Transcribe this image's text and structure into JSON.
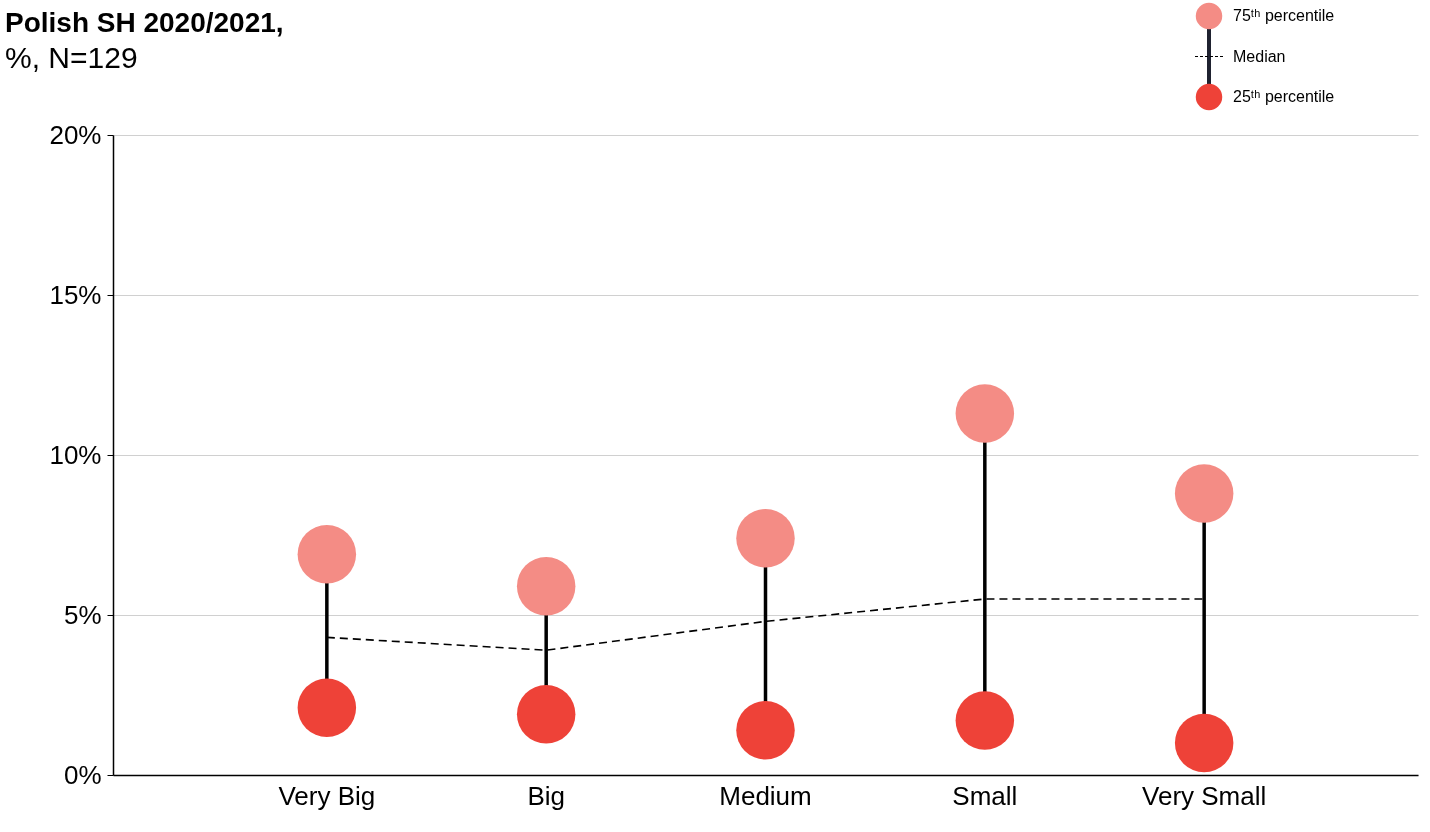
{
  "chart_data": {
    "type": "scatter",
    "title": "Polish SH 2020/2021,",
    "subtitle": "%, N=129",
    "categories": [
      "Very Big",
      "Big",
      "Medium",
      "Small",
      "Very Small"
    ],
    "series": [
      {
        "name": "75ᵗʰ percentile",
        "color": "#f48c85",
        "values": [
          6.9,
          5.9,
          7.4,
          11.3,
          8.8
        ]
      },
      {
        "name": "Median",
        "type": "line",
        "color": "#000000",
        "line_style": "dashed",
        "marker": "none",
        "values": [
          4.3,
          3.9,
          4.8,
          5.5,
          5.5
        ]
      },
      {
        "name": "25ᵗʰ percentile",
        "color": "#ee4238",
        "values": [
          2.1,
          1.9,
          1.4,
          1.7,
          1.0
        ]
      }
    ],
    "ylim": [
      0,
      20
    ],
    "yticks": [
      {
        "value": 0,
        "label": "0%"
      },
      {
        "value": 5,
        "label": "5%"
      },
      {
        "value": 10,
        "label": "10%"
      },
      {
        "value": 15,
        "label": "15%"
      },
      {
        "value": 20,
        "label": "20%"
      }
    ],
    "grid": "y",
    "legend": "top right",
    "marker": "circle"
  }
}
